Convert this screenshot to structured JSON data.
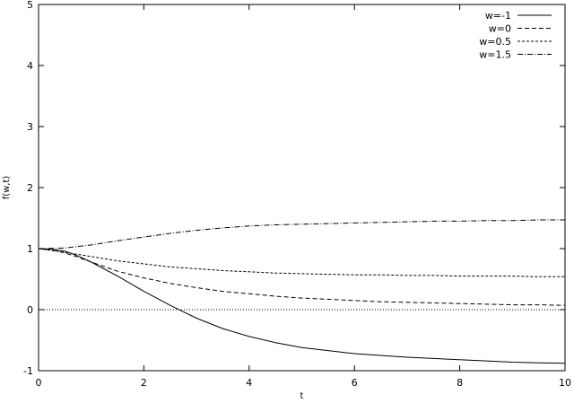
{
  "chart_data": {
    "type": "line",
    "xlabel": "t",
    "ylabel": "f(w,t)",
    "xlim": [
      0,
      10
    ],
    "ylim": [
      -1,
      5
    ],
    "xticks": [
      "0",
      "2",
      "4",
      "6",
      "8",
      "10"
    ],
    "yticks": [
      "-1",
      "0",
      "1",
      "2",
      "3",
      "4",
      "5"
    ],
    "grid": false,
    "legend_position": "top-right",
    "reference_line": {
      "y": 0,
      "style": "dotted"
    },
    "series": [
      {
        "name": "w=-1",
        "dash": "solid",
        "x": [
          0,
          0.25,
          0.5,
          0.75,
          1,
          1.5,
          2,
          2.5,
          3,
          3.5,
          4,
          4.5,
          5,
          5.5,
          6,
          6.5,
          7,
          7.5,
          8,
          8.5,
          9,
          9.5,
          10
        ],
        "y": [
          1,
          0.99,
          0.96,
          0.88,
          0.78,
          0.55,
          0.3,
          0.07,
          -0.14,
          -0.31,
          -0.44,
          -0.54,
          -0.62,
          -0.67,
          -0.72,
          -0.75,
          -0.78,
          -0.8,
          -0.82,
          -0.84,
          -0.86,
          -0.87,
          -0.88
        ]
      },
      {
        "name": "w=0",
        "dash": "dashed",
        "x": [
          0,
          0.25,
          0.5,
          0.75,
          1,
          1.5,
          2,
          2.5,
          3,
          3.5,
          4,
          4.5,
          5,
          5.5,
          6,
          6.5,
          7,
          7.5,
          8,
          8.5,
          9,
          9.5,
          10
        ],
        "y": [
          1,
          0.98,
          0.93,
          0.86,
          0.78,
          0.63,
          0.52,
          0.43,
          0.36,
          0.3,
          0.26,
          0.22,
          0.19,
          0.17,
          0.15,
          0.13,
          0.12,
          0.11,
          0.1,
          0.09,
          0.08,
          0.08,
          0.07
        ]
      },
      {
        "name": "w=0.5",
        "dash": "short-dashed",
        "x": [
          0,
          0.5,
          1,
          1.5,
          2,
          2.5,
          3,
          3.5,
          4,
          4.5,
          5,
          5.5,
          6,
          6.5,
          7,
          7.5,
          8,
          8.5,
          9,
          9.5,
          10
        ],
        "y": [
          1,
          0.94,
          0.87,
          0.8,
          0.75,
          0.7,
          0.67,
          0.64,
          0.62,
          0.6,
          0.59,
          0.58,
          0.57,
          0.57,
          0.56,
          0.56,
          0.55,
          0.55,
          0.55,
          0.54,
          0.54
        ]
      },
      {
        "name": "w=1.5",
        "dash": "dash-dot",
        "x": [
          0,
          0.5,
          1,
          1.5,
          2,
          2.5,
          3,
          3.5,
          4,
          4.5,
          5,
          5.5,
          6,
          6.5,
          7,
          7.5,
          8,
          8.5,
          9,
          9.5,
          10
        ],
        "y": [
          1,
          1.01,
          1.06,
          1.13,
          1.19,
          1.25,
          1.3,
          1.34,
          1.37,
          1.39,
          1.4,
          1.41,
          1.42,
          1.43,
          1.44,
          1.45,
          1.45,
          1.46,
          1.46,
          1.47,
          1.47
        ]
      }
    ]
  }
}
